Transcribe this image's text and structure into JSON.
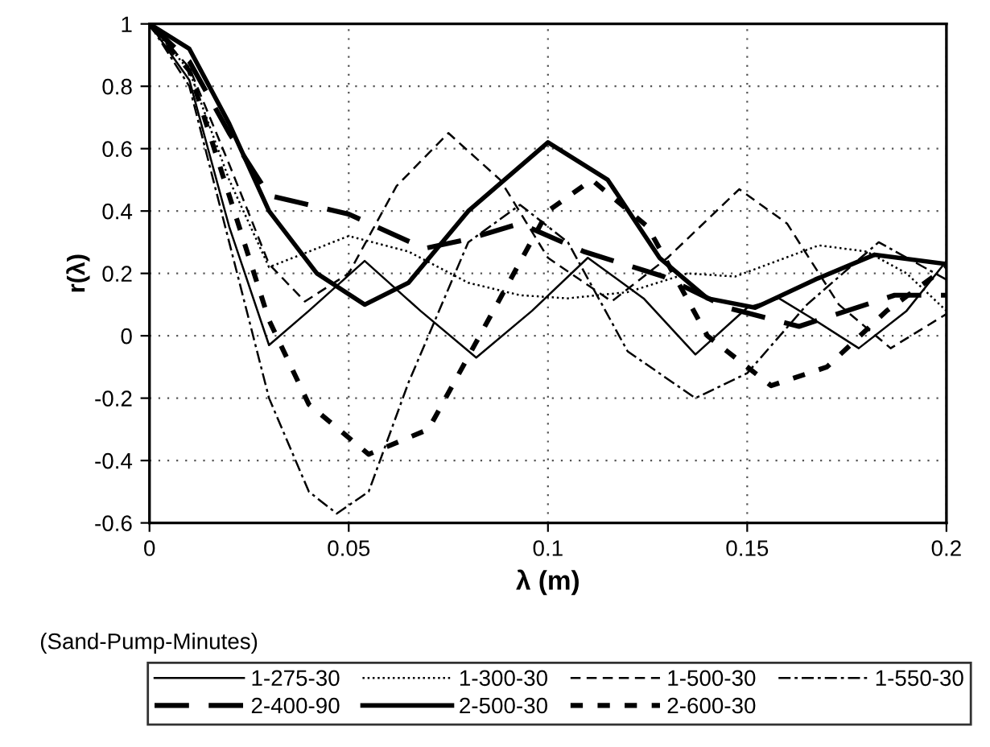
{
  "chart_data": {
    "type": "line",
    "xlabel": "λ (m)",
    "ylabel": "r(λ)",
    "legend_title": "(Sand-Pump-Minutes)",
    "xlim": [
      0,
      0.2
    ],
    "ylim": [
      -0.6,
      1
    ],
    "xticks": [
      0,
      0.05,
      0.1,
      0.15,
      0.2
    ],
    "yticks": [
      -0.6,
      -0.4,
      -0.2,
      0,
      0.2,
      0.4,
      0.6,
      0.8,
      1
    ],
    "grid": true,
    "legend": "bottom",
    "series": [
      {
        "name": "1-275-30",
        "color": "#000000",
        "line_style": "solid",
        "x": [
          0,
          0.01,
          0.02,
          0.03,
          0.04,
          0.054,
          0.068,
          0.082,
          0.096,
          0.11,
          0.124,
          0.137,
          0.15,
          0.158,
          0.167,
          0.178,
          0.19,
          0.2
        ],
        "values": [
          1,
          0.82,
          0.35,
          -0.03,
          0.08,
          0.24,
          0.08,
          -0.07,
          0.08,
          0.25,
          0.12,
          -0.06,
          0.09,
          0.12,
          0.05,
          -0.04,
          0.08,
          0.24
        ]
      },
      {
        "name": "1-300-30",
        "color": "#000000",
        "line_style": "dotted",
        "x": [
          0,
          0.01,
          0.02,
          0.03,
          0.04,
          0.05,
          0.065,
          0.08,
          0.093,
          0.105,
          0.12,
          0.135,
          0.147,
          0.168,
          0.18,
          0.19,
          0.2
        ],
        "values": [
          1,
          0.85,
          0.5,
          0.22,
          0.27,
          0.32,
          0.27,
          0.17,
          0.13,
          0.12,
          0.14,
          0.2,
          0.19,
          0.29,
          0.27,
          0.2,
          0.08
        ]
      },
      {
        "name": "1-500-30",
        "color": "#000000",
        "line_style": "dashed",
        "x": [
          0,
          0.01,
          0.02,
          0.03,
          0.039,
          0.05,
          0.062,
          0.075,
          0.088,
          0.1,
          0.116,
          0.13,
          0.148,
          0.16,
          0.173,
          0.186,
          0.2
        ],
        "values": [
          1,
          0.86,
          0.55,
          0.23,
          0.11,
          0.2,
          0.48,
          0.65,
          0.5,
          0.25,
          0.11,
          0.25,
          0.47,
          0.36,
          0.1,
          -0.04,
          0.07
        ]
      },
      {
        "name": "1-550-30",
        "color": "#000000",
        "line_style": "dashdot",
        "x": [
          0,
          0.01,
          0.02,
          0.03,
          0.04,
          0.047,
          0.055,
          0.065,
          0.08,
          0.093,
          0.105,
          0.12,
          0.137,
          0.15,
          0.165,
          0.183,
          0.2
        ],
        "values": [
          1,
          0.8,
          0.3,
          -0.2,
          -0.5,
          -0.57,
          -0.5,
          -0.15,
          0.3,
          0.42,
          0.3,
          -0.05,
          -0.2,
          -0.12,
          0.1,
          0.3,
          0.18
        ]
      },
      {
        "name": "2-400-90",
        "color": "#000000",
        "line_style": "dashed",
        "x": [
          0,
          0.01,
          0.02,
          0.03,
          0.05,
          0.069,
          0.08,
          0.093,
          0.109,
          0.129,
          0.145,
          0.163,
          0.187,
          0.2
        ],
        "values": [
          1,
          0.88,
          0.65,
          0.45,
          0.39,
          0.28,
          0.31,
          0.36,
          0.27,
          0.19,
          0.09,
          0.03,
          0.13,
          0.13
        ]
      },
      {
        "name": "2-500-30",
        "color": "#000000",
        "line_style": "solid",
        "x": [
          0,
          0.01,
          0.02,
          0.03,
          0.042,
          0.054,
          0.065,
          0.08,
          0.1,
          0.115,
          0.128,
          0.14,
          0.152,
          0.167,
          0.182,
          0.2
        ],
        "values": [
          1,
          0.92,
          0.68,
          0.4,
          0.2,
          0.1,
          0.17,
          0.4,
          0.62,
          0.5,
          0.25,
          0.12,
          0.09,
          0.18,
          0.26,
          0.23
        ]
      },
      {
        "name": "2-600-30",
        "color": "#000000",
        "line_style": "dashed",
        "x": [
          0,
          0.01,
          0.02,
          0.03,
          0.04,
          0.055,
          0.07,
          0.085,
          0.1,
          0.111,
          0.125,
          0.14,
          0.156,
          0.17,
          0.185,
          0.2
        ],
        "values": [
          1,
          0.85,
          0.45,
          0.05,
          -0.22,
          -0.38,
          -0.3,
          0.05,
          0.4,
          0.5,
          0.35,
          0.0,
          -0.16,
          -0.1,
          0.08,
          0.22
        ]
      }
    ]
  }
}
